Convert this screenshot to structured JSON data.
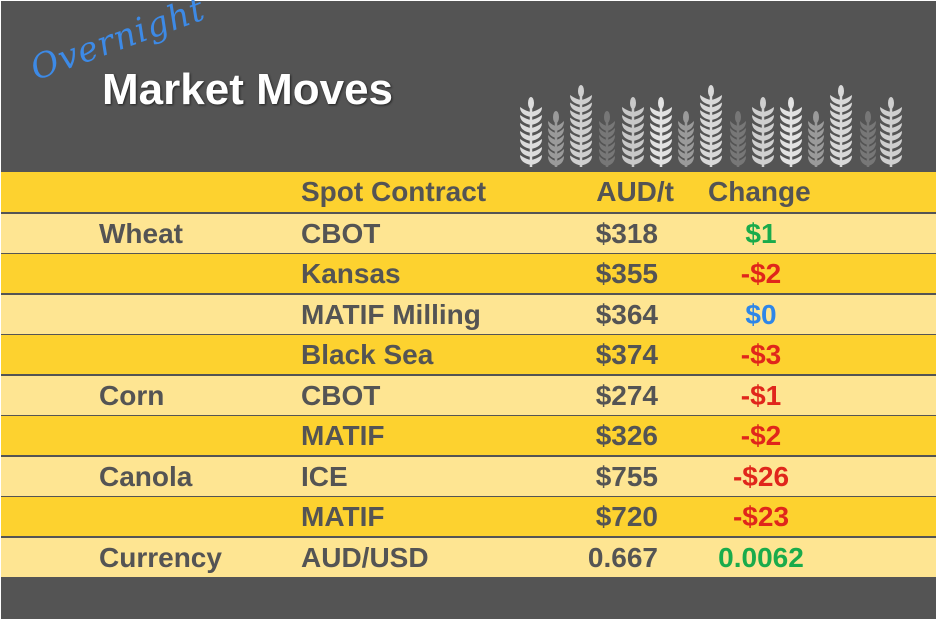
{
  "header": {
    "overline": "Overnight",
    "title": "Market Moves",
    "decoration": "wheat-stalks-icon"
  },
  "colors": {
    "background": "#545454",
    "row_dark": "#fdd22f",
    "row_light": "#fee592",
    "up": "#1aab4b",
    "down": "#e0261b",
    "flat": "#2e86e8",
    "text": "#545454"
  },
  "table": {
    "columns": [
      "",
      "Spot Contract",
      "AUD/t",
      "Change"
    ],
    "rows": [
      {
        "commodity": "Wheat",
        "contract": "CBOT",
        "price": "$318",
        "change": "$1",
        "dir": "up"
      },
      {
        "commodity": "",
        "contract": "Kansas",
        "price": "$355",
        "change": "-$2",
        "dir": "down"
      },
      {
        "commodity": "",
        "contract": "MATIF Milling",
        "price": "$364",
        "change": "$0",
        "dir": "flat"
      },
      {
        "commodity": "",
        "contract": "Black Sea",
        "price": "$374",
        "change": "-$3",
        "dir": "down"
      },
      {
        "commodity": "Corn",
        "contract": "CBOT",
        "price": "$274",
        "change": "-$1",
        "dir": "down"
      },
      {
        "commodity": "",
        "contract": "MATIF",
        "price": "$326",
        "change": "-$2",
        "dir": "down"
      },
      {
        "commodity": "Canola",
        "contract": "ICE",
        "price": "$755",
        "change": "-$26",
        "dir": "down"
      },
      {
        "commodity": "",
        "contract": "MATIF",
        "price": "$720",
        "change": "-$23",
        "dir": "down"
      },
      {
        "commodity": "Currency",
        "contract": "AUD/USD",
        "price": "0.667",
        "change": "0.0062",
        "dir": "up"
      }
    ]
  }
}
